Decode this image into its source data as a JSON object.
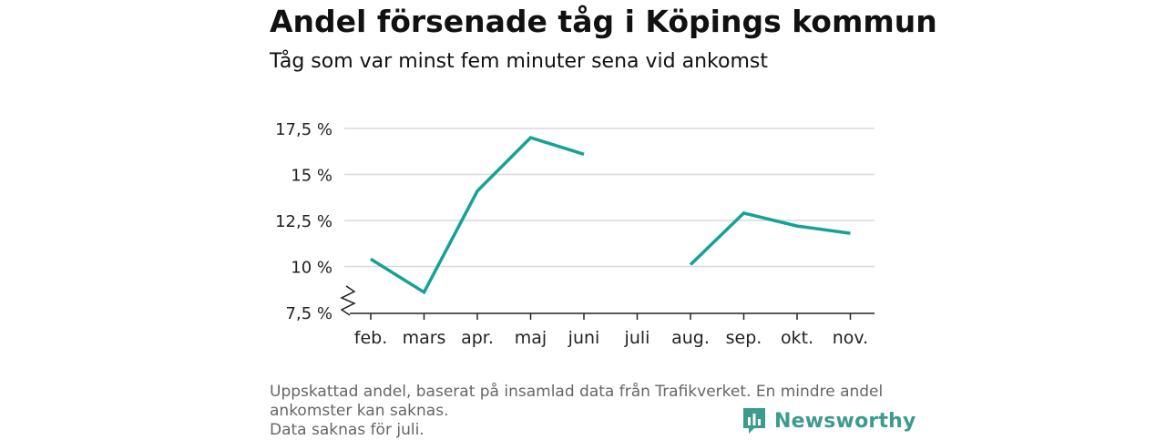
{
  "header": {
    "title": "Andel försenade tåg i Köpings kommun",
    "subtitle": "Tåg som var minst fem minuter sena vid ankomst"
  },
  "chart_data": {
    "type": "line",
    "title": "Andel försenade tåg i Köpings kommun",
    "subtitle": "Tåg som var minst fem minuter sena vid ankomst",
    "categories": [
      "feb.",
      "mars",
      "apr.",
      "maj",
      "juni",
      "juli",
      "aug.",
      "sep.",
      "okt.",
      "nov."
    ],
    "series": [
      {
        "values": [
          10.4,
          8.6,
          14.1,
          17.0,
          16.1,
          null,
          10.1,
          12.9,
          12.2,
          11.8
        ],
        "color": "#15a196"
      }
    ],
    "y_ticks": [
      "7,5 %",
      "10 %",
      "12,5 %",
      "15 %",
      "17,5 %"
    ],
    "y_tick_values": [
      7.5,
      10,
      12.5,
      15,
      17.5
    ],
    "ylim": [
      7.5,
      17.5
    ],
    "grid": true,
    "axis_break": true,
    "xlabel": "",
    "ylabel": ""
  },
  "footnote": {
    "line1": "Uppskattad andel, baserat på insamlad data från Trafikverket. En mindre andel ankomster kan saknas.",
    "line2": "Data saknas för juli."
  },
  "logo": {
    "text": "Newsworthy",
    "color": "#3d9b8e"
  }
}
